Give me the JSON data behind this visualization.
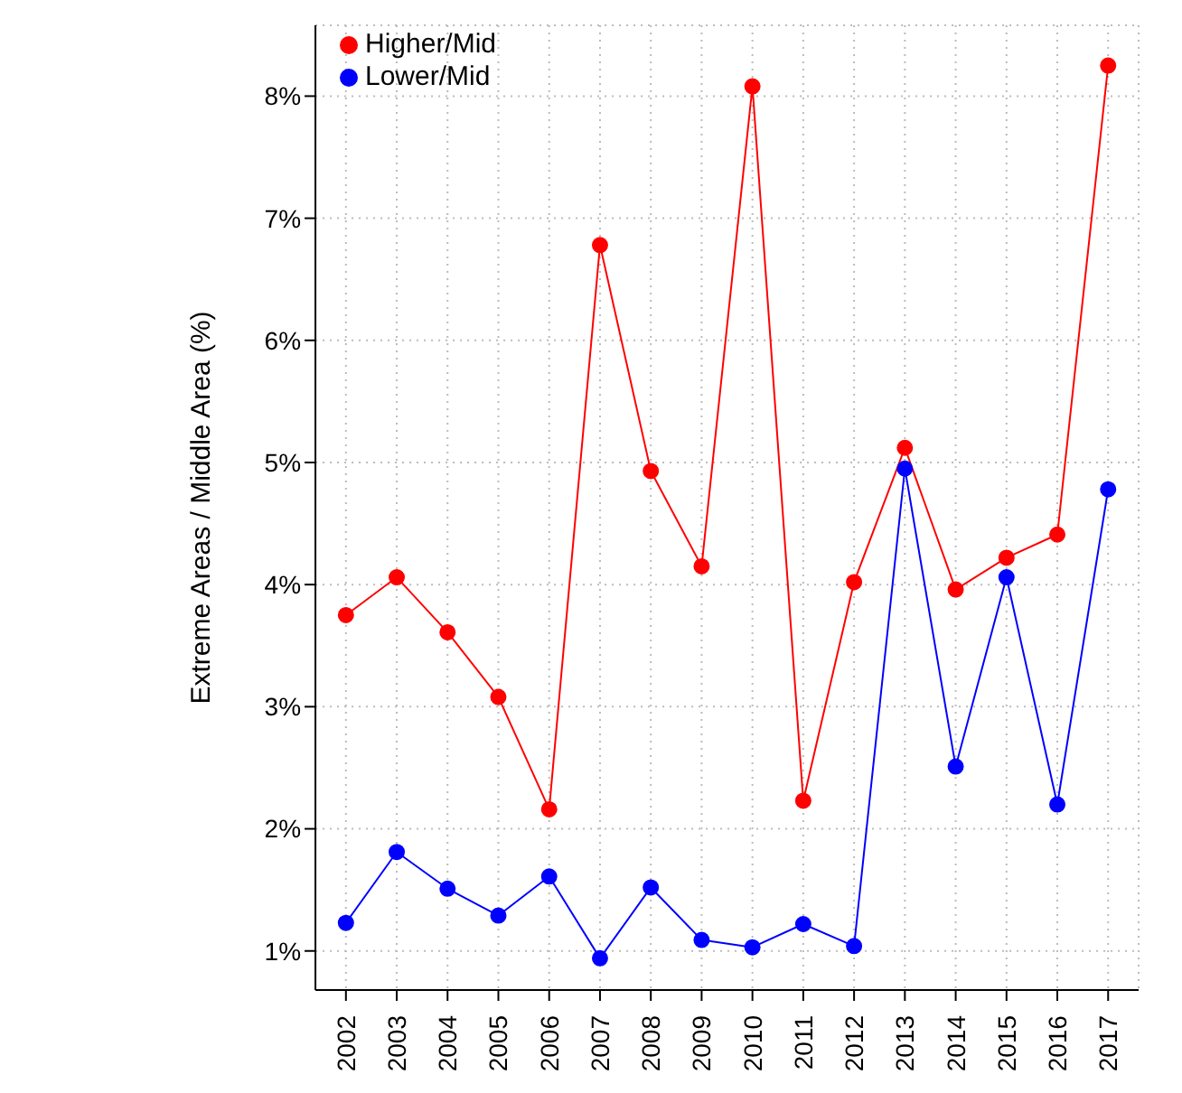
{
  "chart_data": {
    "type": "line",
    "ylabel": "Extreme Areas / Middle Area (%)",
    "categories": [
      "2002",
      "2003",
      "2004",
      "2005",
      "2006",
      "2007",
      "2008",
      "2009",
      "2010",
      "2011",
      "2012",
      "2013",
      "2014",
      "2015",
      "2016",
      "2017"
    ],
    "series": [
      {
        "name": "Higher/Mid",
        "color": "#ff0000",
        "values": [
          3.75,
          4.06,
          3.61,
          3.08,
          2.16,
          6.78,
          4.93,
          4.15,
          8.08,
          2.23,
          4.02,
          5.12,
          3.96,
          4.22,
          4.41,
          8.25
        ]
      },
      {
        "name": "Lower/Mid",
        "color": "#0000ff",
        "values": [
          1.23,
          1.81,
          1.51,
          1.29,
          1.61,
          0.94,
          1.52,
          1.09,
          1.03,
          1.22,
          1.04,
          4.95,
          2.51,
          4.06,
          2.2,
          4.78
        ]
      }
    ],
    "ylim": [
      0.68,
      8.58
    ],
    "yticks": [
      {
        "value": 1,
        "label": "1%"
      },
      {
        "value": 2,
        "label": "2%"
      },
      {
        "value": 3,
        "label": "3%"
      },
      {
        "value": 4,
        "label": "4%"
      },
      {
        "value": 5,
        "label": "5%"
      },
      {
        "value": 6,
        "label": "6%"
      },
      {
        "value": 7,
        "label": "7%"
      },
      {
        "value": 8,
        "label": "8%"
      }
    ],
    "grid": true,
    "legend": "top left",
    "marker": "circle",
    "line_style": "solid"
  }
}
